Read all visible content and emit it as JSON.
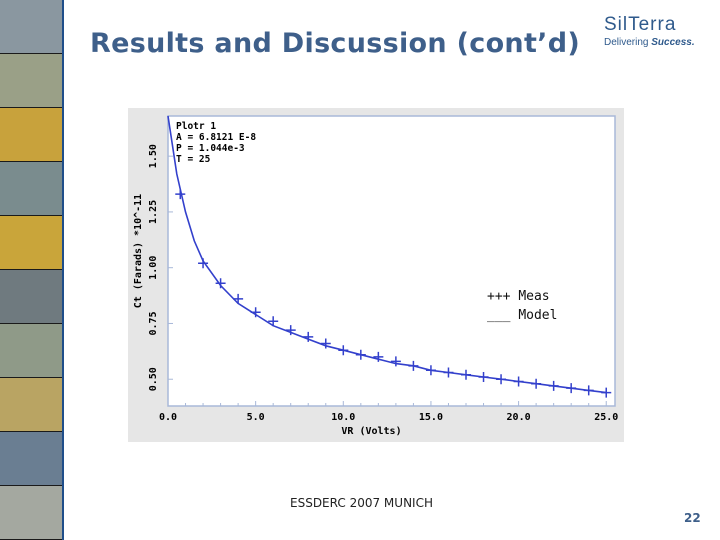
{
  "slide": {
    "title": "Results and Discussion (cont’d)",
    "footer": "ESSDERC 2007 MUNICH",
    "page_number": "22"
  },
  "logo": {
    "name": "SilTerra",
    "tagline_prefix": "Delivering",
    "tagline_accent": "Success."
  },
  "colors": {
    "title": "#3e5f8a",
    "plot_background": "#e6e6e6",
    "plot_border": "#a8b8d8",
    "series": "#3340cc",
    "axis_text": "#000000"
  },
  "photo_strip": {
    "tiles": [
      "#8a97a0",
      "#9aa087",
      "#c8a23c",
      "#7a8c8e",
      "#c9a53a",
      "#6f7a7f",
      "#8f9a88",
      "#b9a463",
      "#6a7e92",
      "#a4a8a0"
    ]
  },
  "legend": {
    "meas_marker": "+++",
    "meas_label": "Meas",
    "model_marker": "___",
    "model_label": "Model"
  },
  "chart_data": {
    "type": "scatter",
    "xlabel": "VR (Volts)",
    "ylabel": "Ct (Farads) *10^-11",
    "xlim": [
      0,
      25.5
    ],
    "ylim": [
      0.38,
      1.68
    ],
    "x_ticks": [
      0,
      5,
      10,
      15,
      20,
      25
    ],
    "x_tick_labels": [
      "0.0",
      "5.0",
      "10.0",
      "15.0",
      "20.0",
      "25.0"
    ],
    "y_ticks": [
      0.5,
      0.75,
      1.0,
      1.25,
      1.5
    ],
    "y_tick_labels": [
      "0.50",
      "0.75",
      "1.00",
      "1.25",
      "1.50"
    ],
    "grid": false,
    "annotations": [
      "Plotr 1",
      "A = 6.8121 E-8",
      "P = 1.044e-3",
      "T = 25"
    ],
    "series": [
      {
        "name": "Meas",
        "marker": "+",
        "x": [
          0.7,
          2.0,
          3.0,
          4.0,
          5.0,
          6.0,
          7.0,
          8.0,
          9.0,
          10.0,
          11.0,
          12.0,
          13.0,
          14.0,
          15.0,
          16.0,
          17.0,
          18.0,
          19.0,
          20.0,
          21.0,
          22.0,
          23.0,
          24.0,
          25.0
        ],
        "y": [
          1.33,
          1.02,
          0.93,
          0.86,
          0.8,
          0.76,
          0.72,
          0.69,
          0.66,
          0.63,
          0.61,
          0.6,
          0.58,
          0.56,
          0.54,
          0.53,
          0.52,
          0.51,
          0.5,
          0.49,
          0.48,
          0.47,
          0.46,
          0.45,
          0.44
        ]
      },
      {
        "name": "Model",
        "marker": "line",
        "x": [
          0,
          0.5,
          1,
          1.5,
          2,
          3,
          4,
          5,
          6,
          7,
          8,
          9,
          10,
          11,
          12,
          13,
          14,
          15,
          16,
          17,
          18,
          19,
          20,
          21,
          22,
          23,
          24,
          25
        ],
        "y": [
          1.68,
          1.42,
          1.25,
          1.12,
          1.03,
          0.92,
          0.84,
          0.79,
          0.74,
          0.71,
          0.68,
          0.65,
          0.63,
          0.61,
          0.59,
          0.57,
          0.56,
          0.54,
          0.53,
          0.52,
          0.51,
          0.5,
          0.49,
          0.48,
          0.47,
          0.46,
          0.45,
          0.44
        ]
      }
    ]
  }
}
